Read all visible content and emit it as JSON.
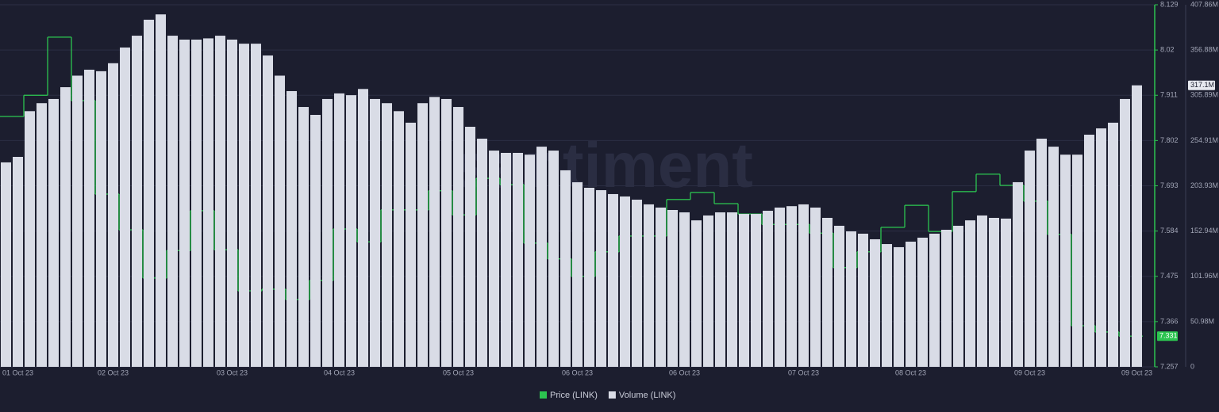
{
  "chart_data": {
    "type": "combo",
    "watermark": "santiment",
    "grid": true,
    "legend": "bottom",
    "categories": [
      null,
      "01 Oct 23",
      null,
      null,
      null,
      null,
      null,
      null,
      null,
      "02 Oct 23",
      null,
      null,
      null,
      null,
      null,
      null,
      null,
      null,
      null,
      "03 Oct 23",
      null,
      null,
      null,
      null,
      null,
      null,
      null,
      null,
      "04 Oct 23",
      null,
      null,
      null,
      null,
      null,
      null,
      null,
      null,
      null,
      "05 Oct 23",
      null,
      null,
      null,
      null,
      null,
      null,
      null,
      null,
      null,
      "06 Oct 23",
      null,
      null,
      null,
      null,
      null,
      null,
      null,
      null,
      "06 Oct 23",
      null,
      null,
      null,
      null,
      null,
      null,
      null,
      null,
      null,
      "07 Oct 23",
      null,
      null,
      null,
      null,
      null,
      null,
      null,
      null,
      "08 Oct 23",
      null,
      null,
      null,
      null,
      null,
      null,
      null,
      null,
      null,
      "09 Oct 23",
      null,
      null,
      null,
      null,
      null,
      null,
      null,
      null,
      "09 Oct 23"
    ],
    "ylim": [
      7.257,
      8.129
    ],
    "yticks": [
      7.257,
      7.366,
      7.475,
      7.584,
      7.693,
      7.802,
      7.911,
      8.02,
      8.129
    ],
    "y2lim": [
      0,
      407.86
    ],
    "y2ticks": [
      0,
      {
        "value": 50.98,
        "label": "50.98M"
      },
      {
        "value": 101.96,
        "label": "101.96M"
      },
      {
        "value": 152.94,
        "label": "152.94M"
      },
      {
        "value": 203.93,
        "label": "203.93M"
      },
      {
        "value": 254.91,
        "label": "254.91M"
      },
      {
        "value": 305.89,
        "label": "305.89M"
      },
      {
        "value": 356.88,
        "label": "356.88M"
      },
      {
        "value": 407.86,
        "label": "407.86M"
      }
    ],
    "series": [
      {
        "name": "Price (LINK)",
        "color": "#2cc450",
        "type": "step",
        "axis": "y",
        "values": [
          7.86,
          7.86,
          7.911,
          7.911,
          8.051,
          8.051,
          7.898,
          7.898,
          7.673,
          7.673,
          7.587,
          7.587,
          7.471,
          7.471,
          7.537,
          7.537,
          7.633,
          7.633,
          7.539,
          7.539,
          7.44,
          7.44,
          7.444,
          7.444,
          7.419,
          7.419,
          7.465,
          7.465,
          7.589,
          7.589,
          7.558,
          7.558,
          7.635,
          7.635,
          7.635,
          7.635,
          7.681,
          7.681,
          7.623,
          7.623,
          7.711,
          7.711,
          7.696,
          7.696,
          7.555,
          7.555,
          7.517,
          7.517,
          7.475,
          7.475,
          7.534,
          7.534,
          7.572,
          7.572,
          7.572,
          7.572,
          7.66,
          7.66,
          7.677,
          7.677,
          7.65,
          7.65,
          7.625,
          7.625,
          7.6,
          7.6,
          7.6,
          7.6,
          7.579,
          7.579,
          7.496,
          7.496,
          7.534,
          7.534,
          7.593,
          7.593,
          7.646,
          7.646,
          7.583,
          7.583,
          7.679,
          7.679,
          7.721,
          7.721,
          7.694,
          7.694,
          7.656,
          7.656,
          7.576,
          7.576,
          7.356,
          7.356,
          7.341,
          7.341,
          7.331,
          7.331
        ]
      },
      {
        "name": "Volume (LINK)",
        "color": "#d9dce6",
        "type": "bar",
        "axis": "y2",
        "values": [
          230.3,
          236.5,
          288.0,
          297.0,
          301.7,
          315.0,
          328.0,
          334.7,
          333.0,
          342.0,
          359.7,
          373.0,
          391.0,
          397.0,
          373.0,
          368.6,
          368.6,
          370.0,
          373.0,
          368.6,
          364.0,
          364.0,
          350.7,
          328.0,
          310.6,
          292.7,
          283.8,
          301.7,
          308.0,
          306.0,
          313.0,
          301.7,
          297.0,
          288.0,
          275.0,
          297.0,
          304.0,
          301.7,
          292.7,
          270.4,
          257.0,
          243.6,
          241.0,
          241.0,
          239.0,
          248.0,
          243.6,
          221.4,
          207.9,
          201.7,
          199.0,
          194.6,
          191.9,
          188.3,
          183.0,
          179.4,
          176.7,
          174.0,
          165.0,
          170.5,
          174.0,
          174.0,
          172.2,
          172.2,
          175.8,
          179.4,
          181.0,
          183.0,
          179.4,
          167.8,
          158.9,
          152.6,
          150.0,
          143.7,
          138.3,
          134.8,
          141.0,
          145.5,
          150.0,
          154.4,
          158.9,
          165.0,
          170.5,
          167.8,
          167.0,
          208.0,
          243.6,
          257.0,
          248.0,
          239.0,
          239.0,
          261.5,
          268.6,
          275.0,
          301.7,
          317.1
        ],
        "value_labels": [
          null,
          null,
          null,
          null,
          null,
          null,
          null,
          null,
          null,
          null,
          null,
          null,
          null,
          null,
          null,
          null,
          null,
          null,
          null,
          null,
          null,
          null,
          null,
          null,
          null,
          null,
          null,
          null,
          null,
          null,
          null,
          null,
          null,
          null,
          null,
          null,
          null,
          null,
          null,
          null,
          null,
          null,
          null,
          null,
          null,
          null,
          null,
          null,
          null,
          null,
          null,
          null,
          null,
          null,
          null,
          null,
          null,
          null,
          null,
          null,
          null,
          null,
          null,
          null,
          null,
          null,
          null,
          null,
          null,
          null,
          null,
          null,
          null,
          null,
          null,
          null,
          null,
          null,
          null,
          null,
          null,
          null,
          null,
          null,
          null,
          null,
          null,
          null,
          null,
          null,
          null,
          null,
          null,
          null,
          null,
          "317.1M"
        ]
      }
    ]
  }
}
